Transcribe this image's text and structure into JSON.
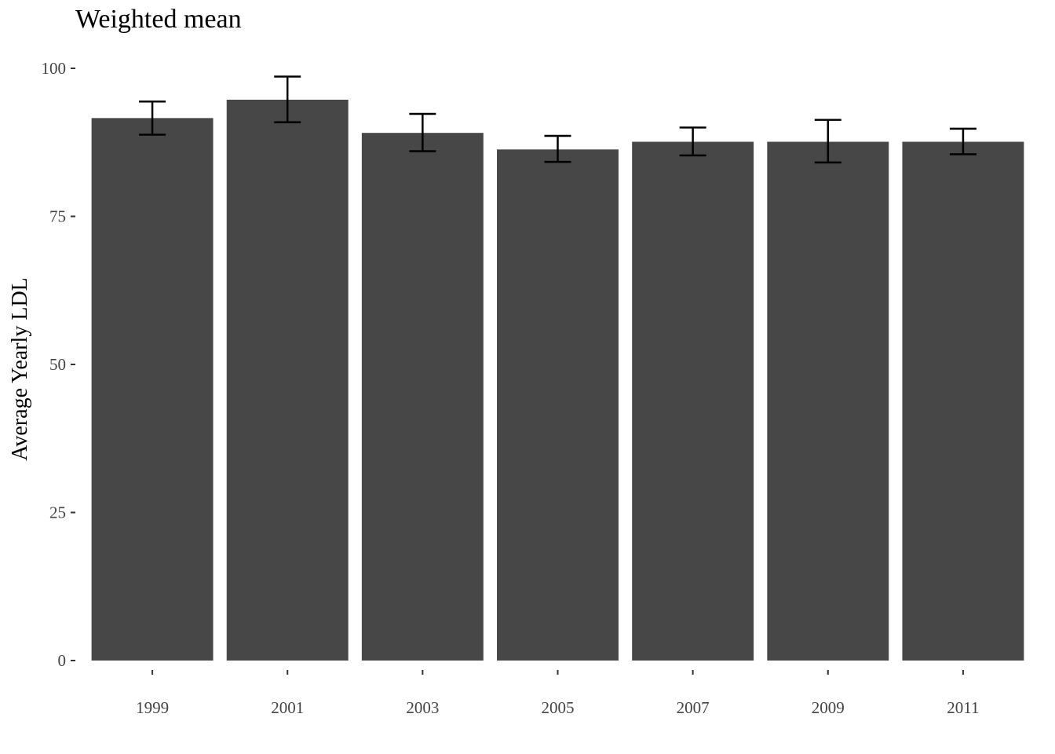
{
  "chart_data": {
    "type": "bar",
    "title": "Weighted mean",
    "xlabel": "",
    "ylabel": "Average Yearly LDL",
    "categories": [
      "1999",
      "2001",
      "2003",
      "2005",
      "2007",
      "2009",
      "2011"
    ],
    "values": [
      91.6,
      94.7,
      89.1,
      86.3,
      87.6,
      87.6,
      87.6
    ],
    "error_low": [
      88.8,
      90.9,
      86.0,
      84.2,
      85.3,
      84.1,
      85.5
    ],
    "error_high": [
      94.4,
      98.6,
      92.3,
      88.6,
      90.0,
      91.3,
      89.8
    ],
    "ylim": [
      0,
      100
    ],
    "yticks": [
      0,
      25,
      50,
      75,
      100
    ],
    "bar_color": "#474747",
    "errorbar_color": "#000000",
    "grid": false,
    "legend": "none"
  }
}
